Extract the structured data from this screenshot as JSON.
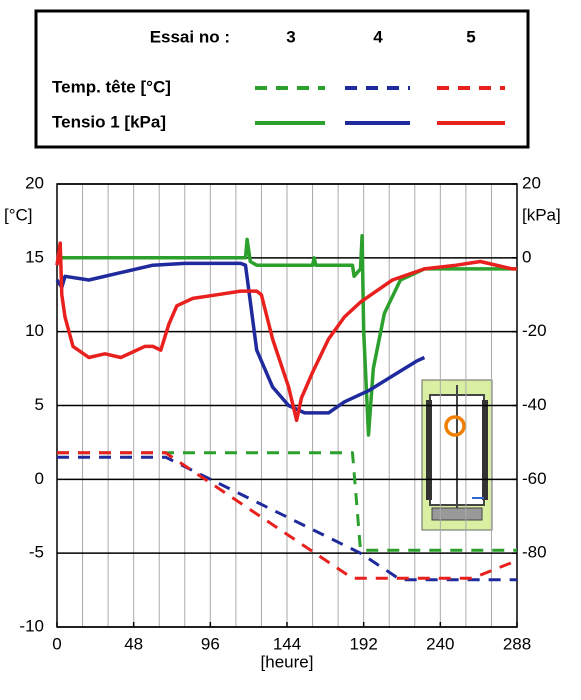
{
  "chart_data": {
    "type": "line",
    "legend_title": "Essai no :",
    "essais": [
      "3",
      "4",
      "5"
    ],
    "xlabel": "[heure]",
    "ylabel": "[°C]",
    "y2label": "[kPa]",
    "xlim": [
      0,
      288
    ],
    "xticks": [
      0,
      48,
      96,
      144,
      192,
      240,
      288
    ],
    "xgrid": [
      16,
      32,
      48,
      64,
      80,
      96,
      112,
      128,
      144,
      160,
      176,
      192,
      208,
      224,
      240,
      256,
      272
    ],
    "ylim": [
      -10,
      20
    ],
    "yticks": [
      -10,
      -5,
      0,
      5,
      10,
      15,
      20
    ],
    "y2lim": [
      -100,
      20
    ],
    "y2ticks": [
      -80,
      -60,
      -40,
      -20,
      0,
      20
    ],
    "grid": true,
    "series": [
      {
        "name": "Temp. tête [°C]",
        "axis": "y",
        "dashed": true,
        "runs": [
          {
            "color": "#2ca02c",
            "x": [
              0,
              185,
              190,
              288
            ],
            "values": [
              1.8,
              1.8,
              -4.8,
              -4.8
            ]
          },
          {
            "color": "#1f2a9c",
            "x": [
              0,
              68,
              190,
              215,
              288
            ],
            "values": [
              1.5,
              1.5,
              -5,
              -6.8,
              -6.8
            ]
          },
          {
            "color": "#e8201e",
            "x": [
              0,
              68,
              185,
              260,
              288
            ],
            "values": [
              1.8,
              1.8,
              -6.7,
              -6.7,
              -5.5
            ]
          }
        ]
      },
      {
        "name": "Tensio 1 [kPa]",
        "axis": "y2",
        "dashed": false,
        "runs": [
          {
            "color": "#2ca02c",
            "x": [
              0,
              118,
              119,
              121,
              125,
              160,
              161,
              162,
              185,
              186,
              190,
              191,
              192,
              195,
              198,
              205,
              215,
              230,
              288
            ],
            "values": [
              0,
              0,
              5,
              -1,
              -2,
              -2,
              0,
              -2,
              -2,
              -5,
              -3,
              6,
              -20,
              -48,
              -30,
              -15,
              -6,
              -3,
              -3
            ]
          },
          {
            "color": "#1f2a9c",
            "x": [
              0,
              3,
              5,
              20,
              40,
              60,
              80,
              115,
              118,
              125,
              135,
              145,
              155,
              170,
              180,
              195,
              210,
              225,
              230
            ],
            "values": [
              -6,
              -8,
              -5,
              -6,
              -4,
              -2,
              -1.5,
              -1.5,
              -2,
              -25,
              -35,
              -40,
              -42,
              -42,
              -39,
              -36,
              -32,
              -28,
              -27
            ]
          },
          {
            "color": "#e8201e",
            "x": [
              0,
              2,
              3,
              5,
              10,
              20,
              30,
              40,
              55,
              60,
              65,
              70,
              75,
              85,
              100,
              115,
              125,
              128,
              135,
              145,
              150,
              153,
              160,
              170,
              180,
              190,
              200,
              210,
              230,
              250,
              265,
              285,
              288
            ],
            "values": [
              -2,
              4,
              -10,
              -16,
              -24,
              -27,
              -26,
              -27,
              -24,
              -24,
              -25,
              -18,
              -13,
              -11,
              -10,
              -9,
              -9,
              -10,
              -22,
              -35,
              -44,
              -38,
              -31,
              -22,
              -16,
              -12,
              -9,
              -6,
              -3,
              -2,
              -1,
              -3,
              -3
            ]
          }
        ]
      }
    ]
  }
}
